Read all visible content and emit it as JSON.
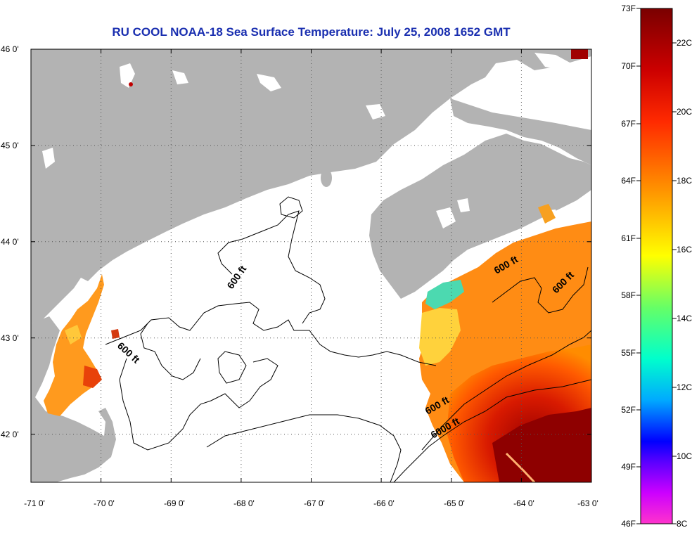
{
  "title": "RU COOL  NOAA-18  Sea Surface Temperature:  July 25, 2008 1652 GMT",
  "map": {
    "lon_range": [
      -71,
      -63
    ],
    "lat_range": [
      41.5,
      46
    ],
    "lon_ticks": [
      -71,
      -70,
      -69,
      -68,
      -67,
      -66,
      -65,
      -64,
      -63
    ],
    "lat_ticks": [
      42,
      43,
      44,
      45,
      46
    ],
    "lon_tick_labels": [
      "-71 0'",
      "-70 0'",
      "-69 0'",
      "-68 0'",
      "-67 0'",
      "-66 0'",
      "-65 0'",
      "-64 0'",
      "-63 0'"
    ],
    "lat_tick_labels": [
      "42 0'",
      "43 0'",
      "44 0'",
      "45 0'",
      "46 0'"
    ],
    "grid": "dotted",
    "contour_labels": [
      "600 ft",
      "600 ft",
      "600 ft",
      "600 ft",
      "6000 ft"
    ],
    "land_color": "#b3b3b3",
    "cloud_color": "#ffffff"
  },
  "colorbar": {
    "f_labels": [
      "73F",
      "70F",
      "67F",
      "64F",
      "61F",
      "58F",
      "55F",
      "52F",
      "49F",
      "46F"
    ],
    "c_labels": [
      "22C",
      "20C",
      "18C",
      "16C",
      "14C",
      "12C",
      "10C",
      "8C"
    ],
    "colors": [
      "#8b0000",
      "#ff0000",
      "#ff8c00",
      "#ffff00",
      "#00ff7f",
      "#00bfff",
      "#0000ff",
      "#ff00ff"
    ]
  }
}
